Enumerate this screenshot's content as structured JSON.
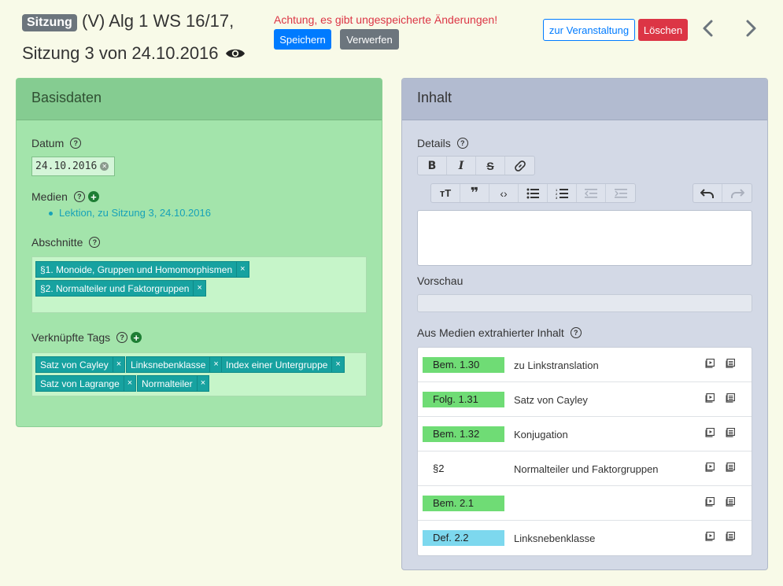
{
  "header": {
    "badge": "Sitzung",
    "title_line1": "(V) Alg 1 WS 16/17,",
    "title_line2": "Sitzung 3 von 24.10.2016",
    "warning": "Achtung, es gibt ungespeicherte Änderungen!",
    "save": "Speichern",
    "discard": "Verwerfen",
    "to_event": "zur Veranstaltung",
    "delete": "Löschen"
  },
  "basis": {
    "title": "Basisdaten",
    "datum_label": "Datum",
    "datum_value": "24.10.2016",
    "medien_label": "Medien",
    "medien_items": [
      "Lektion, zu Sitzung 3, 24.10.2016"
    ],
    "abschnitte_label": "Abschnitte",
    "abschnitte": [
      "§1. Monoide, Gruppen und Homomorphismen",
      "§2. Normalteiler und Faktorgruppen"
    ],
    "tags_label": "Verknüpfte Tags",
    "tags": [
      "Satz von Cayley",
      "Linksnebenklasse",
      "Index einer Untergruppe",
      "Satz von Lagrange",
      "Normalteiler"
    ]
  },
  "inhalt": {
    "title": "Inhalt",
    "details_label": "Details",
    "vorschau_label": "Vorschau",
    "extracted_label": "Aus Medien extrahierter Inhalt",
    "rows": [
      {
        "badge": "Bem. 1.30",
        "text": "zu Linkstranslation",
        "color": "#6fdc75"
      },
      {
        "badge": "Folg. 1.31",
        "text": "Satz von Cayley",
        "color": "#6fdc75"
      },
      {
        "badge": "Bem. 1.32",
        "text": "Konjugation",
        "color": "#6fdc75"
      },
      {
        "badge": "§2",
        "text": "Normalteiler und Faktorgruppen",
        "color": "transparent"
      },
      {
        "badge": "Bem. 2.1",
        "text": "",
        "color": "#6fdc75"
      },
      {
        "badge": "Def. 2.2",
        "text": "Linksnebenklasse",
        "color": "#7dd8ee"
      }
    ]
  },
  "colors": {
    "primary": "#007bff",
    "danger": "#dc3545",
    "tag": "#17a2a0"
  }
}
